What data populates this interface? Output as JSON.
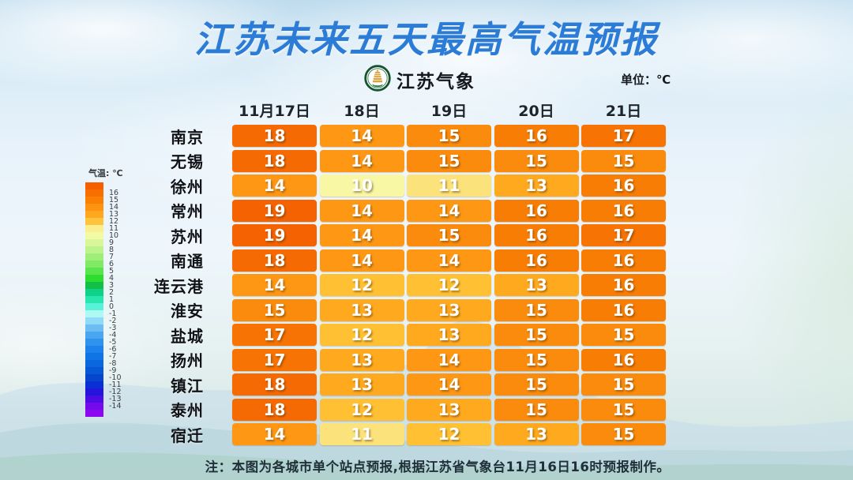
{
  "title": "江苏未来五天最高气温预报",
  "logo": {
    "name": "jiangsu-meteorology-emblem",
    "text": "江苏气象"
  },
  "unit_label": "单位：℃",
  "note": "注：本图为各城市单个站点预报,根据江苏省气象台11月16日16时预报制作。",
  "legend": {
    "title": "气温: ℃",
    "entries": [
      {
        "label": "",
        "color": "#f55f00"
      },
      {
        "label": "16",
        "color": "#f86f00"
      },
      {
        "label": "15",
        "color": "#fa8004"
      },
      {
        "label": "14",
        "color": "#fd9310"
      },
      {
        "label": "13",
        "color": "#ffa71f"
      },
      {
        "label": "12",
        "color": "#ffc33e"
      },
      {
        "label": "11",
        "color": "#fbee8e"
      },
      {
        "label": "10",
        "color": "#f2faa6"
      },
      {
        "label": "9",
        "color": "#d8f79b"
      },
      {
        "label": "8",
        "color": "#bcf38a"
      },
      {
        "label": "7",
        "color": "#9fee79"
      },
      {
        "label": "6",
        "color": "#81ea65"
      },
      {
        "label": "5",
        "color": "#58e54b"
      },
      {
        "label": "4",
        "color": "#2cdd2f"
      },
      {
        "label": "3",
        "color": "#12bf47"
      },
      {
        "label": "2",
        "color": "#0ed287"
      },
      {
        "label": "1",
        "color": "#27e7ae"
      },
      {
        "label": "0",
        "color": "#58f2d8"
      },
      {
        "label": "-1",
        "color": "#aef9f3"
      },
      {
        "label": "-2",
        "color": "#8fdaf8"
      },
      {
        "label": "-3",
        "color": "#6cbdf5"
      },
      {
        "label": "-4",
        "color": "#4aa6f1"
      },
      {
        "label": "-5",
        "color": "#2f93ee"
      },
      {
        "label": "-6",
        "color": "#1b83eb"
      },
      {
        "label": "-7",
        "color": "#0f75e7"
      },
      {
        "label": "-8",
        "color": "#0b67de"
      },
      {
        "label": "-9",
        "color": "#0858d5"
      },
      {
        "label": "-10",
        "color": "#0646cc"
      },
      {
        "label": "-11",
        "color": "#0a30d5"
      },
      {
        "label": "-12",
        "color": "#2315dc"
      },
      {
        "label": "-13",
        "color": "#4c0ce3"
      },
      {
        "label": "-14",
        "color": "#730aeb"
      },
      {
        "label": "",
        "color": "#8c06f2"
      }
    ]
  },
  "temp_colors": {
    "10": "#f7f7a4",
    "11": "#fbe27b",
    "12": "#ffc133",
    "13": "#ffa91e",
    "14": "#fd9714",
    "15": "#fa8b0c",
    "16": "#f87d05",
    "17": "#f67304",
    "18": "#f56a03",
    "19": "#f46201"
  },
  "table": {
    "date_headers": [
      "11月17日",
      "18日",
      "19日",
      "20日",
      "21日"
    ],
    "rows": [
      {
        "city": "南京",
        "temps": [
          18,
          14,
          15,
          16,
          17
        ]
      },
      {
        "city": "无锡",
        "temps": [
          18,
          14,
          15,
          15,
          15
        ]
      },
      {
        "city": "徐州",
        "temps": [
          14,
          10,
          11,
          13,
          16
        ]
      },
      {
        "city": "常州",
        "temps": [
          19,
          14,
          14,
          16,
          16
        ]
      },
      {
        "city": "苏州",
        "temps": [
          19,
          14,
          15,
          16,
          17
        ]
      },
      {
        "city": "南通",
        "temps": [
          18,
          14,
          14,
          16,
          16
        ]
      },
      {
        "city": "连云港",
        "temps": [
          14,
          12,
          12,
          13,
          16
        ]
      },
      {
        "city": "淮安",
        "temps": [
          15,
          13,
          13,
          15,
          16
        ]
      },
      {
        "city": "盐城",
        "temps": [
          17,
          12,
          13,
          15,
          15
        ]
      },
      {
        "city": "扬州",
        "temps": [
          17,
          13,
          14,
          15,
          16
        ]
      },
      {
        "city": "镇江",
        "temps": [
          18,
          13,
          14,
          15,
          15
        ]
      },
      {
        "city": "泰州",
        "temps": [
          18,
          12,
          13,
          15,
          15
        ]
      },
      {
        "city": "宿迁",
        "temps": [
          14,
          11,
          12,
          13,
          15
        ]
      }
    ]
  },
  "chart_data": {
    "type": "heatmap",
    "title": "江苏未来五天最高气温预报",
    "unit": "℃",
    "x": [
      "11月17日",
      "18日",
      "19日",
      "20日",
      "21日"
    ],
    "y": [
      "南京",
      "无锡",
      "徐州",
      "常州",
      "苏州",
      "南通",
      "连云港",
      "淮安",
      "盐城",
      "扬州",
      "镇江",
      "泰州",
      "宿迁"
    ],
    "values": [
      [
        18,
        14,
        15,
        16,
        17
      ],
      [
        18,
        14,
        15,
        15,
        15
      ],
      [
        14,
        10,
        11,
        13,
        16
      ],
      [
        19,
        14,
        14,
        16,
        16
      ],
      [
        19,
        14,
        15,
        16,
        17
      ],
      [
        18,
        14,
        14,
        16,
        16
      ],
      [
        14,
        12,
        12,
        13,
        16
      ],
      [
        15,
        13,
        13,
        15,
        16
      ],
      [
        17,
        12,
        13,
        15,
        15
      ],
      [
        17,
        13,
        14,
        15,
        16
      ],
      [
        18,
        13,
        14,
        15,
        15
      ],
      [
        18,
        12,
        13,
        15,
        15
      ],
      [
        14,
        11,
        12,
        13,
        15
      ]
    ],
    "legend": {
      "title": "气温: ℃",
      "min": -14,
      "max": 16,
      "position": "left"
    },
    "source_note": "注：本图为各城市单个站点预报,根据江苏省气象台11月16日16时预报制作。"
  }
}
